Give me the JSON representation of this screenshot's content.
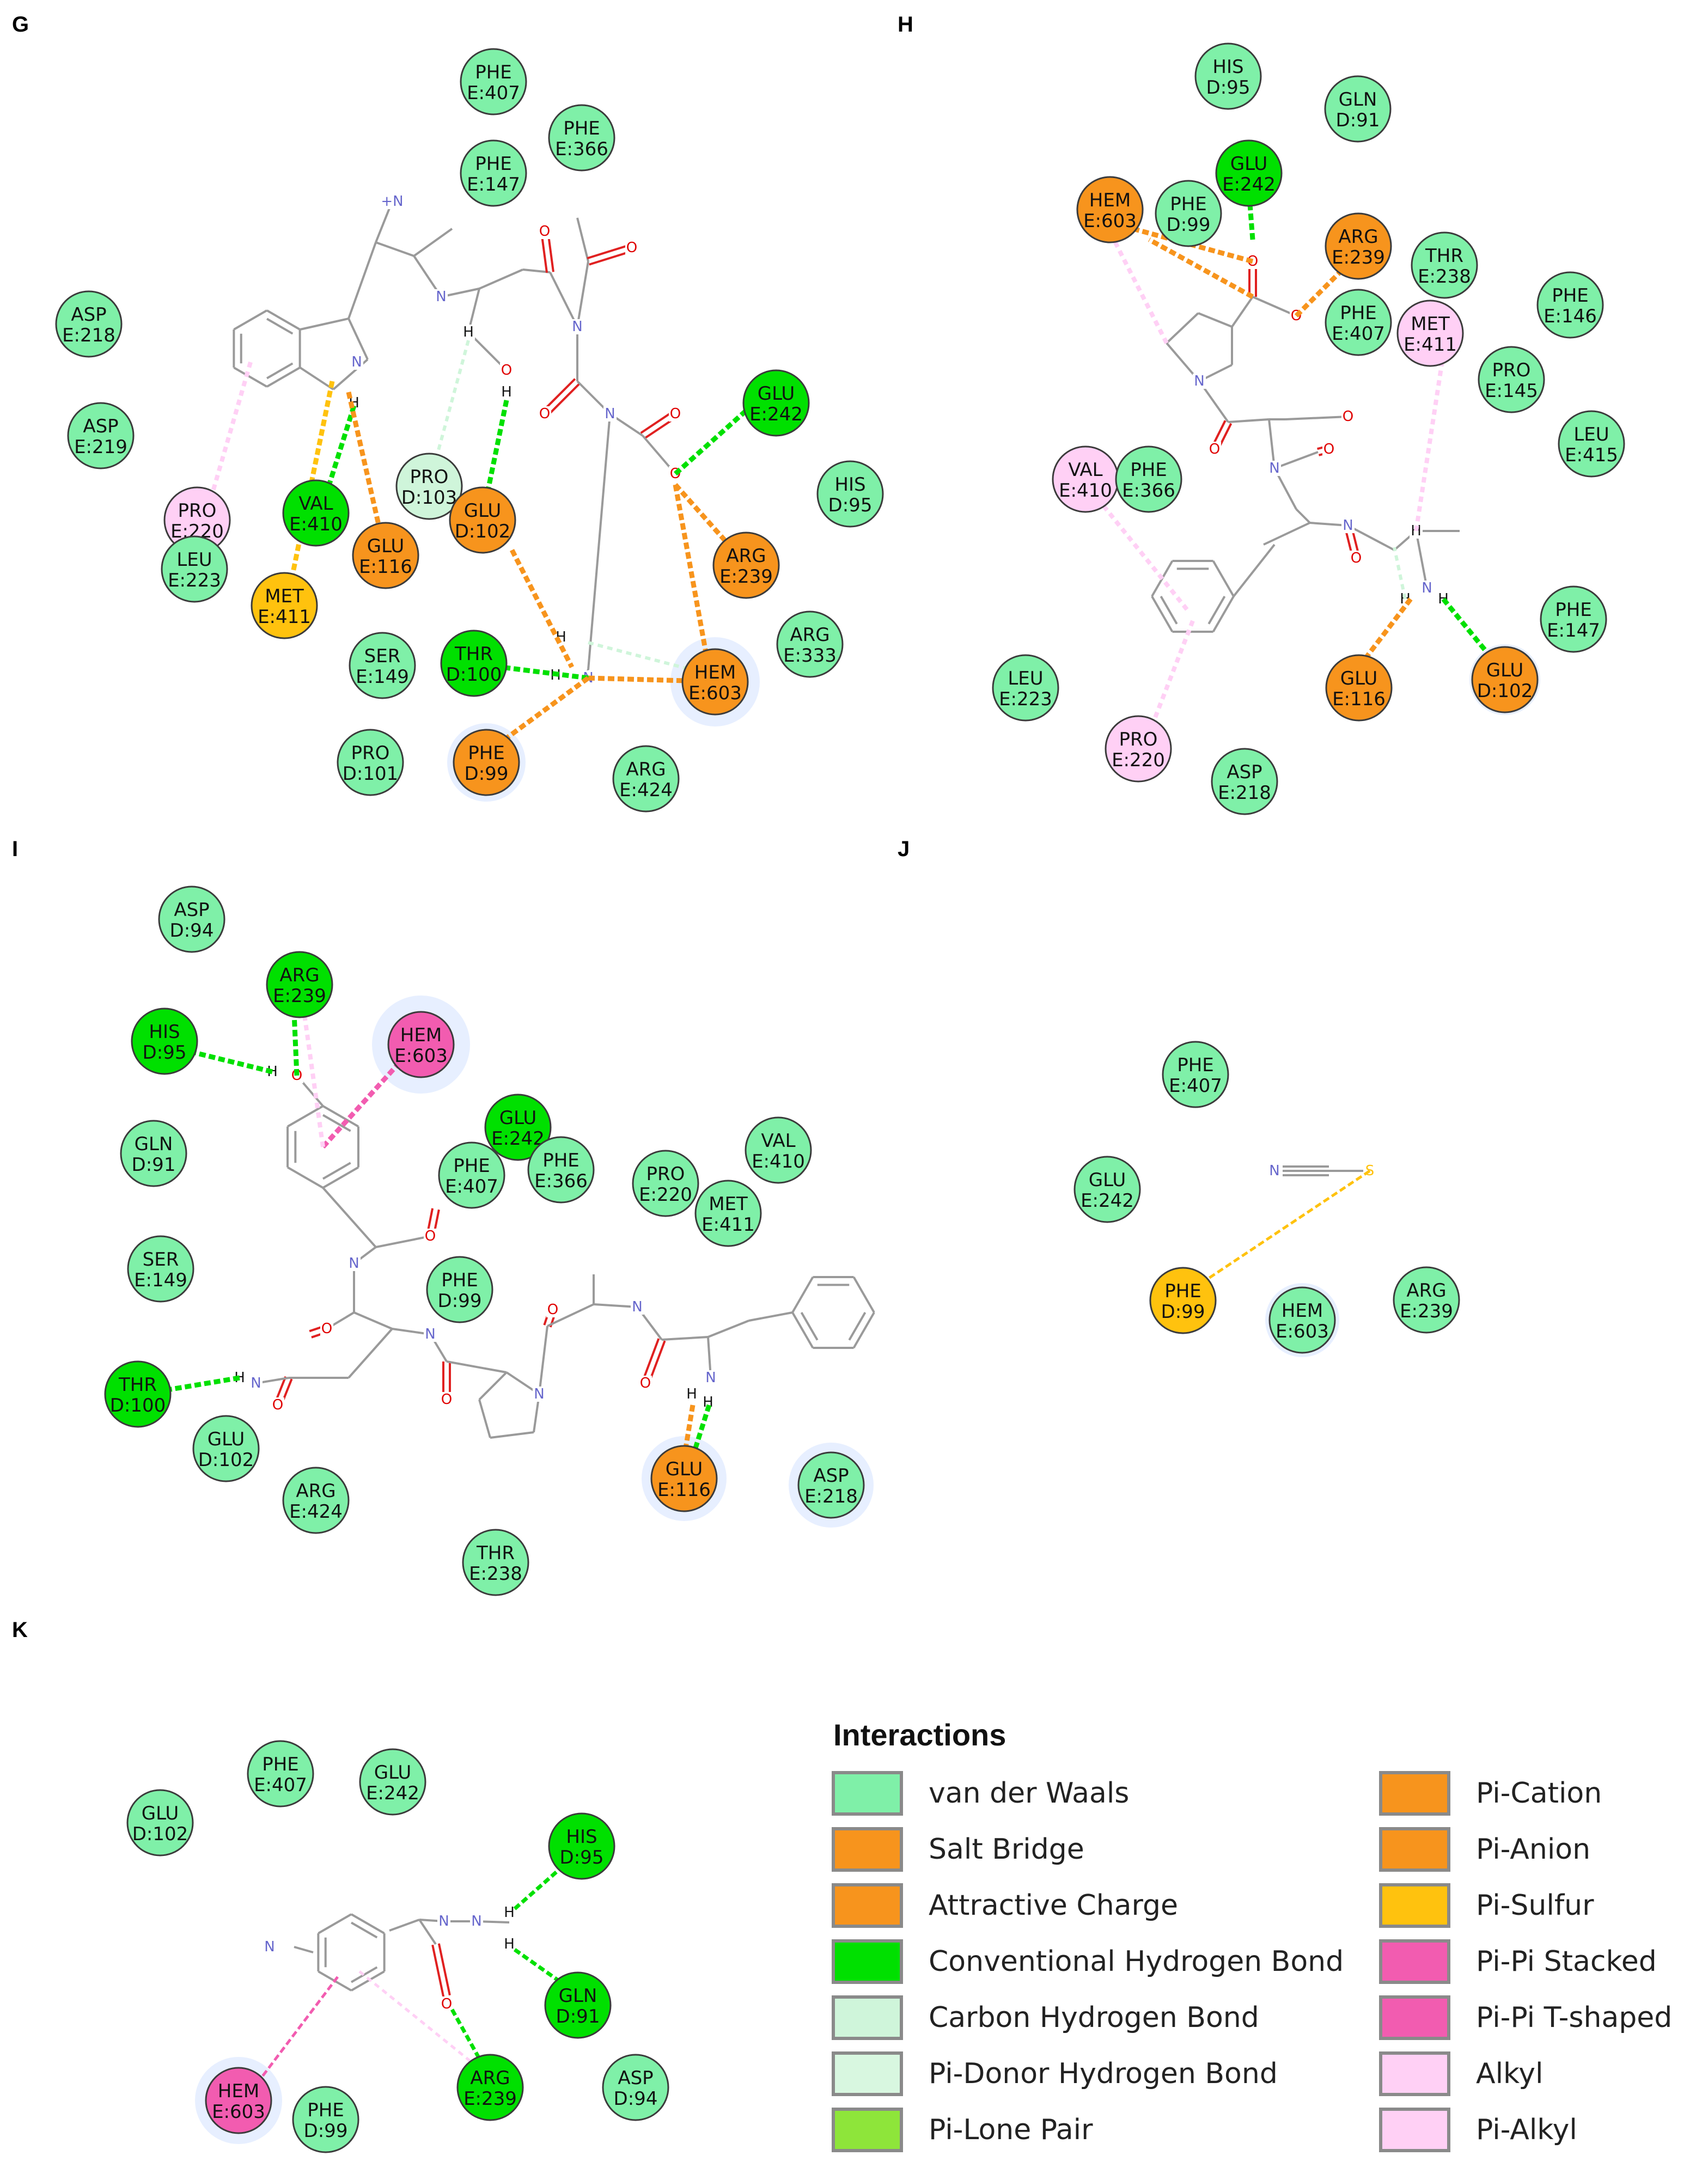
{
  "colors": {
    "van_der_waals": "#7ff0a8",
    "salt_bridge": "#f7941d",
    "attractive_charge": "#f7941d",
    "conventional_hbond": "#00e000",
    "carbon_hbond": "#cff5da",
    "pi_donor_hbond": "#d8f7e0",
    "pi_lone_pair": "#8ee53a",
    "pi_cation": "#f7941d",
    "pi_anion": "#f7941d",
    "pi_sulfur": "#ffc20e",
    "pi_pi_stacked": "#f25cb0",
    "pi_pi_tshaped": "#f25cb0",
    "alkyl": "#ffd0f5",
    "pi_alkyl": "#ffd0f5",
    "bond": "#9a9a9a",
    "oxygen": "#e00000",
    "nitrogen": "#6666cc",
    "halo": "#e3ecff"
  },
  "panels": [
    {
      "label": "G",
      "residues": [
        {
          "name": "PHE",
          "id": "E:407",
          "type": "van_der_waals"
        },
        {
          "name": "PHE",
          "id": "E:366",
          "type": "van_der_waals"
        },
        {
          "name": "PHE",
          "id": "E:147",
          "type": "van_der_waals"
        },
        {
          "name": "ASP",
          "id": "E:218",
          "type": "van_der_waals"
        },
        {
          "name": "ASP",
          "id": "E:219",
          "type": "van_der_waals"
        },
        {
          "name": "PRO",
          "id": "E:220",
          "type": "alkyl"
        },
        {
          "name": "LEU",
          "id": "E:223",
          "type": "van_der_waals"
        },
        {
          "name": "VAL",
          "id": "E:410",
          "type": "conventional_hbond"
        },
        {
          "name": "MET",
          "id": "E:411",
          "type": "pi_sulfur"
        },
        {
          "name": "GLU",
          "id": "E:116",
          "type": "attractive_charge"
        },
        {
          "name": "PRO",
          "id": "D:103",
          "type": "carbon_hbond"
        },
        {
          "name": "GLU",
          "id": "D:102",
          "type": "attractive_charge"
        },
        {
          "name": "GLU",
          "id": "E:242",
          "type": "conventional_hbond"
        },
        {
          "name": "HIS",
          "id": "D:95",
          "type": "van_der_waals"
        },
        {
          "name": "ARG",
          "id": "E:239",
          "type": "attractive_charge"
        },
        {
          "name": "ARG",
          "id": "E:333",
          "type": "van_der_waals"
        },
        {
          "name": "HEM",
          "id": "E:603",
          "type": "attractive_charge"
        },
        {
          "name": "SER",
          "id": "E:149",
          "type": "van_der_waals"
        },
        {
          "name": "THR",
          "id": "D:100",
          "type": "conventional_hbond"
        },
        {
          "name": "PRO",
          "id": "D:101",
          "type": "van_der_waals"
        },
        {
          "name": "PHE",
          "id": "D:99",
          "type": "attractive_charge"
        },
        {
          "name": "ARG",
          "id": "E:424",
          "type": "van_der_waals"
        }
      ]
    },
    {
      "label": "H",
      "residues": [
        {
          "name": "HIS",
          "id": "D:95",
          "type": "van_der_waals"
        },
        {
          "name": "GLN",
          "id": "D:91",
          "type": "van_der_waals"
        },
        {
          "name": "GLU",
          "id": "E:242",
          "type": "conventional_hbond"
        },
        {
          "name": "HEM",
          "id": "E:603",
          "type": "attractive_charge"
        },
        {
          "name": "PHE",
          "id": "D:99",
          "type": "van_der_waals"
        },
        {
          "name": "ARG",
          "id": "E:239",
          "type": "attractive_charge"
        },
        {
          "name": "THR",
          "id": "E:238",
          "type": "van_der_waals"
        },
        {
          "name": "PHE",
          "id": "E:146",
          "type": "van_der_waals"
        },
        {
          "name": "PHE",
          "id": "E:407",
          "type": "van_der_waals"
        },
        {
          "name": "MET",
          "id": "E:411",
          "type": "alkyl"
        },
        {
          "name": "PRO",
          "id": "E:145",
          "type": "van_der_waals"
        },
        {
          "name": "LEU",
          "id": "E:415",
          "type": "van_der_waals"
        },
        {
          "name": "VAL",
          "id": "E:410",
          "type": "alkyl"
        },
        {
          "name": "PHE",
          "id": "E:366",
          "type": "van_der_waals"
        },
        {
          "name": "PHE",
          "id": "E:147",
          "type": "van_der_waals"
        },
        {
          "name": "GLU",
          "id": "E:116",
          "type": "attractive_charge"
        },
        {
          "name": "GLU",
          "id": "D:102",
          "type": "attractive_charge"
        },
        {
          "name": "LEU",
          "id": "E:223",
          "type": "van_der_waals"
        },
        {
          "name": "PRO",
          "id": "E:220",
          "type": "alkyl"
        },
        {
          "name": "ASP",
          "id": "E:218",
          "type": "van_der_waals"
        }
      ]
    },
    {
      "label": "I",
      "residues": [
        {
          "name": "ASP",
          "id": "D:94",
          "type": "van_der_waals"
        },
        {
          "name": "ARG",
          "id": "E:239",
          "type": "conventional_hbond"
        },
        {
          "name": "HIS",
          "id": "D:95",
          "type": "conventional_hbond"
        },
        {
          "name": "HEM",
          "id": "E:603",
          "type": "pi_pi_tshaped"
        },
        {
          "name": "GLN",
          "id": "D:91",
          "type": "van_der_waals"
        },
        {
          "name": "GLU",
          "id": "E:242",
          "type": "conventional_hbond"
        },
        {
          "name": "PHE",
          "id": "E:407",
          "type": "van_der_waals"
        },
        {
          "name": "PHE",
          "id": "E:366",
          "type": "van_der_waals"
        },
        {
          "name": "PRO",
          "id": "E:220",
          "type": "van_der_waals"
        },
        {
          "name": "VAL",
          "id": "E:410",
          "type": "van_der_waals"
        },
        {
          "name": "MET",
          "id": "E:411",
          "type": "van_der_waals"
        },
        {
          "name": "SER",
          "id": "E:149",
          "type": "van_der_waals"
        },
        {
          "name": "PHE",
          "id": "D:99",
          "type": "van_der_waals"
        },
        {
          "name": "THR",
          "id": "D:100",
          "type": "conventional_hbond"
        },
        {
          "name": "GLU",
          "id": "D:102",
          "type": "van_der_waals"
        },
        {
          "name": "ARG",
          "id": "E:424",
          "type": "van_der_waals"
        },
        {
          "name": "THR",
          "id": "E:238",
          "type": "van_der_waals"
        },
        {
          "name": "GLU",
          "id": "E:116",
          "type": "attractive_charge"
        },
        {
          "name": "ASP",
          "id": "E:218",
          "type": "van_der_waals"
        }
      ]
    },
    {
      "label": "J",
      "residues": [
        {
          "name": "PHE",
          "id": "E:407",
          "type": "van_der_waals"
        },
        {
          "name": "GLU",
          "id": "E:242",
          "type": "van_der_waals"
        },
        {
          "name": "PHE",
          "id": "D:99",
          "type": "pi_sulfur"
        },
        {
          "name": "HEM",
          "id": "E:603",
          "type": "van_der_waals"
        },
        {
          "name": "ARG",
          "id": "E:239",
          "type": "van_der_waals"
        }
      ]
    },
    {
      "label": "K",
      "residues": [
        {
          "name": "PHE",
          "id": "E:407",
          "type": "van_der_waals"
        },
        {
          "name": "GLU",
          "id": "E:242",
          "type": "van_der_waals"
        },
        {
          "name": "GLU",
          "id": "D:102",
          "type": "van_der_waals"
        },
        {
          "name": "HIS",
          "id": "D:95",
          "type": "conventional_hbond"
        },
        {
          "name": "GLN",
          "id": "D:91",
          "type": "conventional_hbond"
        },
        {
          "name": "HEM",
          "id": "E:603",
          "type": "pi_pi_tshaped"
        },
        {
          "name": "PHE",
          "id": "D:99",
          "type": "van_der_waals"
        },
        {
          "name": "ARG",
          "id": "E:239",
          "type": "conventional_hbond"
        },
        {
          "name": "ASP",
          "id": "D:94",
          "type": "van_der_waals"
        }
      ]
    }
  ],
  "legend": {
    "title": "Interactions",
    "left": [
      {
        "label": "van der Waals",
        "type": "van_der_waals"
      },
      {
        "label": "Salt Bridge",
        "type": "salt_bridge"
      },
      {
        "label": "Attractive Charge",
        "type": "attractive_charge"
      },
      {
        "label": "Conventional Hydrogen Bond",
        "type": "conventional_hbond"
      },
      {
        "label": "Carbon Hydrogen Bond",
        "type": "carbon_hbond"
      },
      {
        "label": "Pi-Donor Hydrogen Bond",
        "type": "pi_donor_hbond"
      },
      {
        "label": "Pi-Lone Pair",
        "type": "pi_lone_pair"
      }
    ],
    "right": [
      {
        "label": "Pi-Cation",
        "type": "pi_cation"
      },
      {
        "label": "Pi-Anion",
        "type": "pi_anion"
      },
      {
        "label": "Pi-Sulfur",
        "type": "pi_sulfur"
      },
      {
        "label": "Pi-Pi Stacked",
        "type": "pi_pi_stacked"
      },
      {
        "label": "Pi-Pi T-shaped",
        "type": "pi_pi_tshaped"
      },
      {
        "label": "Alkyl",
        "type": "alkyl"
      },
      {
        "label": "Pi-Alkyl",
        "type": "pi_alkyl"
      }
    ]
  }
}
